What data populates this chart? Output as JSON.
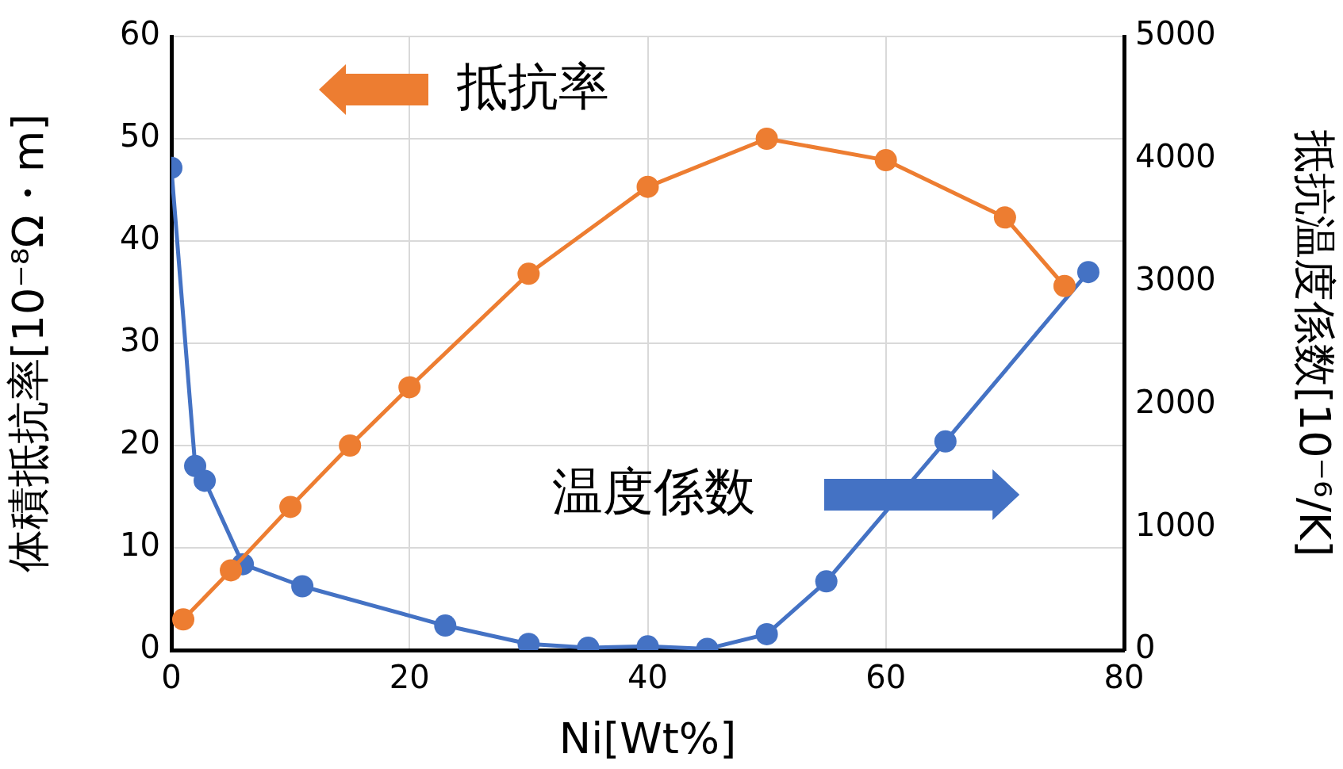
{
  "chart_data": {
    "type": "line",
    "xlabel": "Ni[Wt%]",
    "ylabel": "体積抵抗率[10⁻⁸Ω・m]",
    "y2label": "抵抗温度係数[10⁻⁶/K]",
    "xlim": [
      0,
      80
    ],
    "xticks": [
      0,
      20,
      40,
      60,
      80
    ],
    "ylim": [
      0,
      60
    ],
    "yticks": [
      0,
      10,
      20,
      30,
      40,
      50,
      60
    ],
    "y2lim": [
      0,
      5000
    ],
    "y2ticks": [
      0,
      1000,
      2000,
      3000,
      4000,
      5000
    ],
    "series": [
      {
        "color": "#ed7d31",
        "axis": "y",
        "x": [
          1,
          5,
          10,
          15,
          20,
          30,
          40,
          50,
          60,
          70,
          75
        ],
        "values": [
          3,
          7.8,
          14,
          20,
          25.7,
          36.8,
          45.3,
          50,
          47.9,
          42.3,
          35.6
        ]
      },
      {
        "color": "#4472c4",
        "axis": "y2",
        "x": [
          0,
          2,
          2.8,
          6,
          11,
          23,
          30,
          35,
          40,
          45,
          50,
          55,
          65,
          77
        ],
        "values": [
          3930,
          1500,
          1380,
          700,
          520,
          200,
          50,
          20,
          30,
          10,
          130,
          560,
          1700,
          3080
        ]
      }
    ],
    "annotations": [
      "抵抗率",
      "温度係数"
    ],
    "grid": true,
    "legend": false,
    "marker": "circle",
    "line_style": "solid"
  }
}
